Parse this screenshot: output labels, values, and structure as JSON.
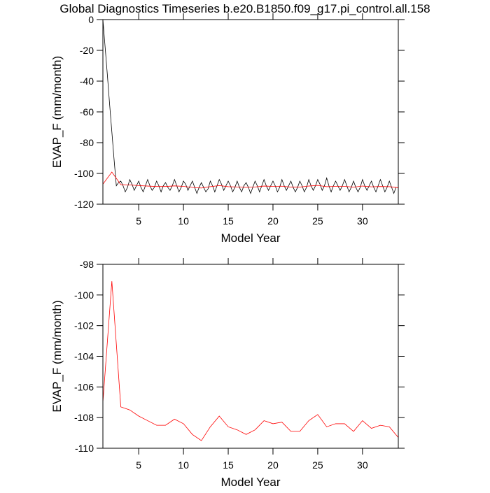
{
  "chart_data": [
    {
      "type": "line",
      "title": "Global Diagnostics Timeseries b.e20.B1850.f09_g17.pi_control.all.158",
      "x_label": "Model Year",
      "y_label": "EVAP_F (mm/month)",
      "xlim": [
        1,
        34
      ],
      "xticks": [
        5,
        10,
        15,
        20,
        25,
        30
      ],
      "ylim": [
        -120,
        0
      ],
      "yticks": [
        0,
        -20,
        -40,
        -60,
        -80,
        -100,
        -120
      ],
      "series": [
        {
          "color": "#000000",
          "x": [
            1,
            1.25,
            1.5,
            1.75,
            2,
            2.25,
            2.5,
            2.75,
            3,
            3.25,
            3.5,
            3.75,
            4,
            4.25,
            4.5,
            4.75,
            5,
            5.25,
            5.5,
            5.75,
            6,
            6.25,
            6.5,
            6.75,
            7,
            7.25,
            7.5,
            7.75,
            8,
            8.25,
            8.5,
            8.75,
            9,
            9.25,
            9.5,
            9.75,
            10,
            10.25,
            10.5,
            10.75,
            11,
            11.25,
            11.5,
            11.75,
            12,
            12.25,
            12.5,
            12.75,
            13,
            13.25,
            13.5,
            13.75,
            14,
            14.25,
            14.5,
            14.75,
            15,
            15.25,
            15.5,
            15.75,
            16,
            16.25,
            16.5,
            16.75,
            17,
            17.25,
            17.5,
            17.75,
            18,
            18.25,
            18.5,
            18.75,
            19,
            19.25,
            19.5,
            19.75,
            20,
            20.25,
            20.5,
            20.75,
            21,
            21.25,
            21.5,
            21.75,
            22,
            22.25,
            22.5,
            22.75,
            23,
            23.25,
            23.5,
            23.75,
            24,
            24.25,
            24.5,
            24.75,
            25,
            25.25,
            25.5,
            25.75,
            26,
            26.25,
            26.5,
            26.75,
            27,
            27.25,
            27.5,
            27.75,
            28,
            28.25,
            28.5,
            28.75,
            29,
            29.25,
            29.5,
            29.75,
            30,
            30.25,
            30.5,
            30.75,
            31,
            31.25,
            31.5,
            31.75,
            32,
            32.25,
            32.5,
            32.75,
            33,
            33.25,
            33.5,
            33.75
          ],
          "values": [
            0,
            -18,
            -36,
            -55,
            -73,
            -91,
            -108,
            -106,
            -105,
            -108,
            -112,
            -109,
            -104,
            -107,
            -111,
            -108,
            -105,
            -109,
            -112,
            -108,
            -104,
            -108,
            -111,
            -109,
            -105,
            -108,
            -112,
            -108,
            -106,
            -109,
            -111,
            -108,
            -104,
            -108,
            -112,
            -109,
            -105,
            -107,
            -111,
            -108,
            -105,
            -109,
            -113,
            -109,
            -106,
            -109,
            -112,
            -110,
            -105,
            -108,
            -112,
            -108,
            -104,
            -107,
            -111,
            -108,
            -105,
            -108,
            -112,
            -109,
            -105,
            -109,
            -112,
            -108,
            -106,
            -109,
            -113,
            -109,
            -105,
            -108,
            -112,
            -108,
            -104,
            -108,
            -111,
            -108,
            -105,
            -108,
            -112,
            -109,
            -104,
            -108,
            -111,
            -108,
            -105,
            -109,
            -112,
            -109,
            -105,
            -108,
            -112,
            -109,
            -104,
            -108,
            -111,
            -108,
            -104,
            -107,
            -111,
            -108,
            -103,
            -108,
            -112,
            -108,
            -105,
            -108,
            -111,
            -108,
            -104,
            -108,
            -112,
            -109,
            -105,
            -109,
            -112,
            -109,
            -104,
            -108,
            -111,
            -108,
            -105,
            -109,
            -112,
            -108,
            -104,
            -108,
            -112,
            -109,
            -105,
            -109,
            -113,
            -109
          ]
        },
        {
          "color": "#ff0000",
          "x": [
            1,
            2,
            3,
            4,
            5,
            6,
            7,
            8,
            9,
            10,
            11,
            12,
            13,
            14,
            15,
            16,
            17,
            18,
            19,
            20,
            21,
            22,
            23,
            24,
            25,
            26,
            27,
            28,
            29,
            30,
            31,
            32,
            33,
            34
          ],
          "values": [
            -107.0,
            -99.1,
            -107.3,
            -107.5,
            -107.9,
            -108.2,
            -108.5,
            -108.5,
            -108.1,
            -108.4,
            -109.1,
            -109.5,
            -108.6,
            -107.9,
            -108.6,
            -108.8,
            -109.1,
            -108.8,
            -108.2,
            -108.4,
            -108.3,
            -108.9,
            -108.9,
            -108.2,
            -107.8,
            -108.6,
            -108.4,
            -108.4,
            -108.9,
            -108.2,
            -108.7,
            -108.5,
            -108.6,
            -109.3
          ]
        }
      ]
    },
    {
      "type": "line",
      "x_label": "Model Year",
      "y_label": "EVAP_F (mm/month)",
      "xlim": [
        1,
        34
      ],
      "xticks": [
        5,
        10,
        15,
        20,
        25,
        30
      ],
      "ylim": [
        -110,
        -98
      ],
      "yticks": [
        -98,
        -100,
        -102,
        -104,
        -106,
        -108,
        -110
      ],
      "series": [
        {
          "color": "#ff0000",
          "x": [
            1,
            2,
            3,
            4,
            5,
            6,
            7,
            8,
            9,
            10,
            11,
            12,
            13,
            14,
            15,
            16,
            17,
            18,
            19,
            20,
            21,
            22,
            23,
            24,
            25,
            26,
            27,
            28,
            29,
            30,
            31,
            32,
            33,
            34
          ],
          "values": [
            -107.0,
            -99.1,
            -107.3,
            -107.5,
            -107.9,
            -108.2,
            -108.5,
            -108.5,
            -108.1,
            -108.4,
            -109.1,
            -109.5,
            -108.6,
            -107.9,
            -108.6,
            -108.8,
            -109.1,
            -108.8,
            -108.2,
            -108.4,
            -108.3,
            -108.9,
            -108.9,
            -108.2,
            -107.8,
            -108.6,
            -108.4,
            -108.4,
            -108.9,
            -108.2,
            -108.7,
            -108.5,
            -108.6,
            -109.3
          ]
        }
      ]
    }
  ]
}
